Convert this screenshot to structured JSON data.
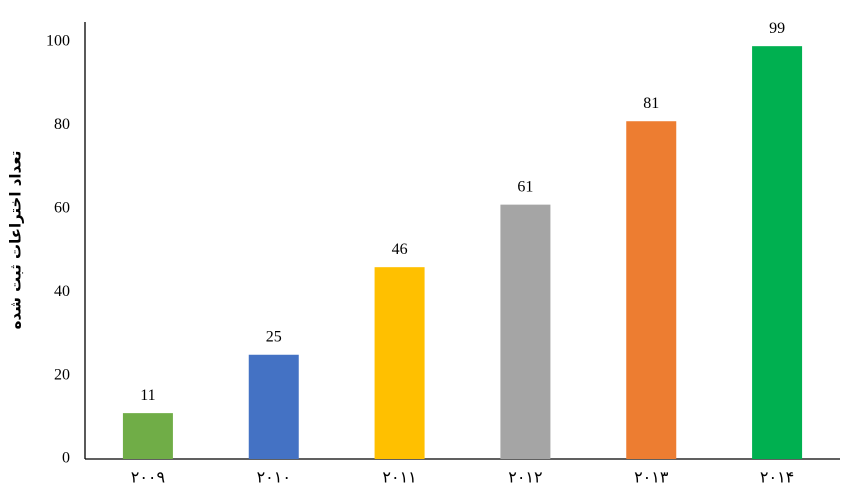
{
  "chart_data": {
    "type": "bar",
    "y_label": "تعداد اختراعات ثبت شده",
    "categories": [
      "۲۰۰۹",
      "۲۰۱۰",
      "۲۰۱۱",
      "۲۰۱۲",
      "۲۰۱۳",
      "۲۰۱۴"
    ],
    "values": [
      11,
      25,
      46,
      61,
      81,
      99
    ],
    "colors": [
      "#70ad47",
      "#4472c4",
      "#ffc000",
      "#a5a5a5",
      "#ed7d31",
      "#00b050"
    ],
    "ylim": [
      0,
      100
    ],
    "yticks": [
      0,
      20,
      40,
      60,
      80,
      100
    ],
    "grid": false
  }
}
